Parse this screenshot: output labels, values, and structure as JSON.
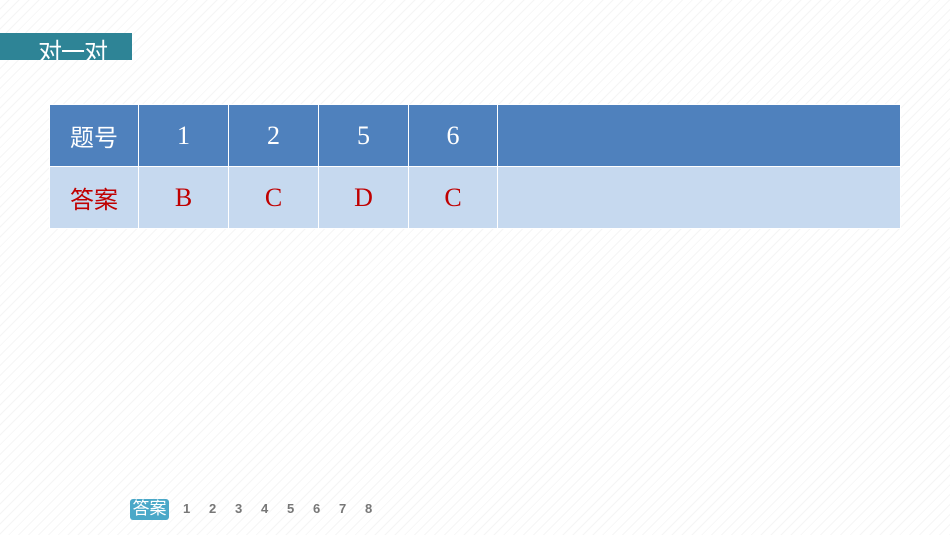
{
  "header": {
    "title": "对一对"
  },
  "table": {
    "header_row": {
      "label": "题号",
      "cells": [
        "1",
        "2",
        "5",
        "6",
        ""
      ]
    },
    "answer_row": {
      "label": "答案",
      "cells": [
        "B",
        "C",
        "D",
        "C",
        ""
      ]
    }
  },
  "nav": {
    "badge": "答案",
    "pages": [
      "1",
      "2",
      "3",
      "4",
      "5",
      "6",
      "7",
      "8"
    ]
  },
  "colors": {
    "header_bar": "#2e8496",
    "table_head": "#4f81bd",
    "table_body": "#c6d9ef",
    "answer_text": "#c00000",
    "badge": "#4aa8c8"
  }
}
